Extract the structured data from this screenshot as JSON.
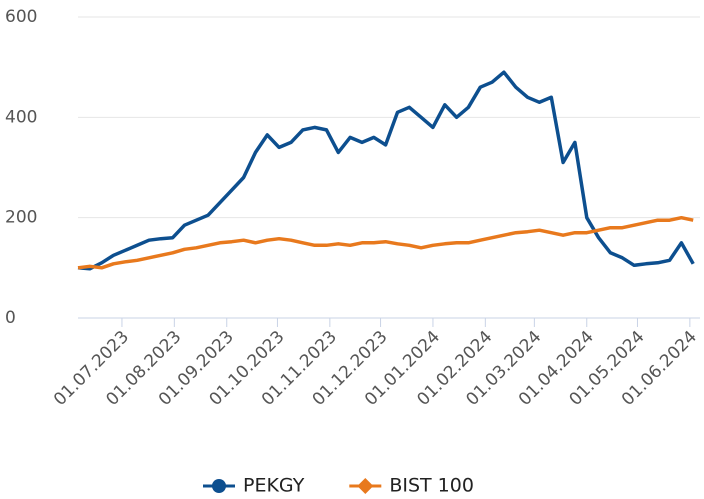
{
  "chart_data": {
    "type": "line",
    "x": [
      "2023-06-05",
      "2023-06-12",
      "2023-06-19",
      "2023-06-26",
      "2023-07-03",
      "2023-07-10",
      "2023-07-17",
      "2023-07-24",
      "2023-07-31",
      "2023-08-07",
      "2023-08-14",
      "2023-08-21",
      "2023-08-28",
      "2023-09-04",
      "2023-09-11",
      "2023-09-18",
      "2023-09-25",
      "2023-10-02",
      "2023-10-09",
      "2023-10-16",
      "2023-10-23",
      "2023-10-30",
      "2023-11-06",
      "2023-11-13",
      "2023-11-20",
      "2023-11-27",
      "2023-12-04",
      "2023-12-11",
      "2023-12-18",
      "2023-12-25",
      "2024-01-01",
      "2024-01-08",
      "2024-01-15",
      "2024-01-22",
      "2024-01-29",
      "2024-02-05",
      "2024-02-12",
      "2024-02-19",
      "2024-02-26",
      "2024-03-04",
      "2024-03-11",
      "2024-03-18",
      "2024-03-25",
      "2024-04-01",
      "2024-04-08",
      "2024-04-15",
      "2024-04-22",
      "2024-04-29",
      "2024-05-06",
      "2024-05-13",
      "2024-05-20",
      "2024-05-27",
      "2024-06-03"
    ],
    "series": [
      {
        "name": "PEKGY",
        "color": "#0d4f8f",
        "marker": "circle",
        "values": [
          100,
          98,
          110,
          125,
          135,
          145,
          155,
          158,
          160,
          185,
          195,
          205,
          230,
          255,
          280,
          330,
          365,
          340,
          350,
          375,
          380,
          375,
          330,
          360,
          350,
          360,
          345,
          410,
          420,
          400,
          380,
          425,
          400,
          420,
          460,
          470,
          490,
          460,
          440,
          430,
          440,
          310,
          350,
          200,
          160,
          130,
          120,
          105,
          108,
          110,
          115,
          150,
          108
        ]
      },
      {
        "name": "BIST 100",
        "color": "#e8791d",
        "marker": "diamond",
        "values": [
          100,
          103,
          100,
          108,
          112,
          115,
          120,
          125,
          130,
          137,
          140,
          145,
          150,
          152,
          155,
          150,
          155,
          158,
          155,
          150,
          145,
          145,
          148,
          145,
          150,
          150,
          152,
          148,
          145,
          140,
          145,
          148,
          150,
          150,
          155,
          160,
          165,
          170,
          172,
          175,
          170,
          165,
          170,
          170,
          175,
          180,
          180,
          185,
          190,
          195,
          195,
          200,
          195
        ]
      }
    ],
    "xlim": [
      "2023-06-05",
      "2024-06-07"
    ],
    "xticks": [
      {
        "value": "2023-07-01",
        "label": "01.07.2023"
      },
      {
        "value": "2023-08-01",
        "label": "01.08.2023"
      },
      {
        "value": "2023-09-01",
        "label": "01.09.2023"
      },
      {
        "value": "2023-10-01",
        "label": "01.10.2023"
      },
      {
        "value": "2023-11-01",
        "label": "01.11.2023"
      },
      {
        "value": "2023-12-01",
        "label": "01.12.2023"
      },
      {
        "value": "2024-01-01",
        "label": "01.01.2024"
      },
      {
        "value": "2024-02-01",
        "label": "01.02.2024"
      },
      {
        "value": "2024-03-01",
        "label": "01.03.2024"
      },
      {
        "value": "2024-04-01",
        "label": "01.04.2024"
      },
      {
        "value": "2024-05-01",
        "label": "01.05.2024"
      },
      {
        "value": "2024-06-01",
        "label": "01.06.2024"
      }
    ],
    "ylim": [
      0,
      600
    ],
    "yticks": [
      0,
      200,
      400,
      600
    ],
    "grid": true,
    "legend": "bottom"
  }
}
